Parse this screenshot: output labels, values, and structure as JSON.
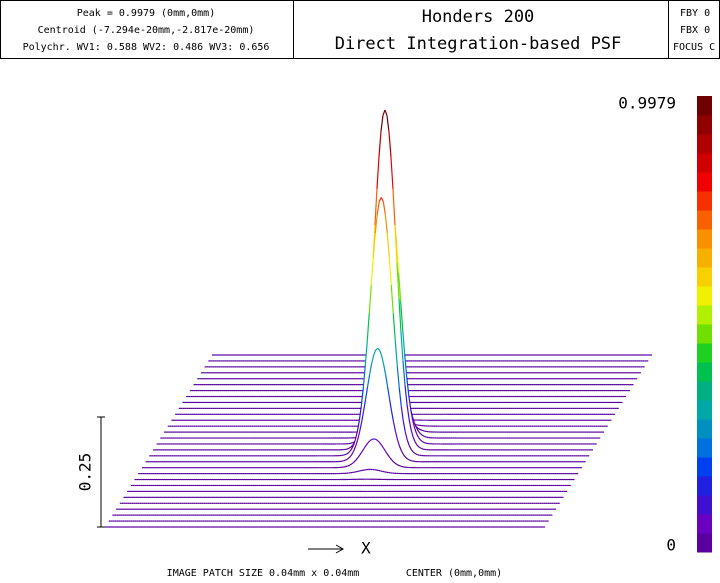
{
  "header": {
    "info": [
      "Peak = 0.9979 (0mm,0mm)",
      "Centroid (-7.294e-20mm,-2.817e-20mm)",
      "Polychr. WV1: 0.588 WV2: 0.486 WV3: 0.656"
    ],
    "title": "Honders 200",
    "subtitle": "Direct Integration-based PSF",
    "right": [
      "FBY 0",
      "FBX 0",
      "FOCUS C"
    ]
  },
  "plot": {
    "scale_max": "0.9979",
    "scale_min": "0",
    "vertical_scale": "0.25",
    "axis": "X"
  },
  "footer": {
    "patch": "IMAGE PATCH SIZE 0.04mm x 0.04mm",
    "center": "CENTER (0mm,0mm)"
  }
}
